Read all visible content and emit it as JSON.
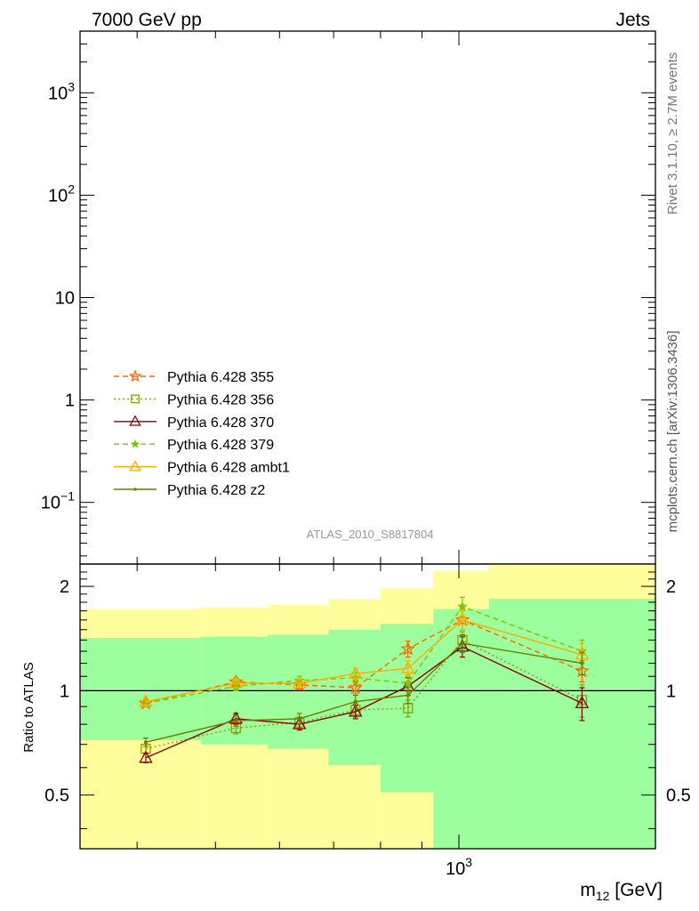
{
  "header": {
    "left": "7000 GeV pp",
    "right": "Jets"
  },
  "side": {
    "rivet_text": "Rivet 3.1.10, ≥ 2.7M events",
    "mcplots_text": "mcplots.cern.ch [arXiv:1306.3436]"
  },
  "analysis_label": "ATLAS_2010_S8817804",
  "colors": {
    "band_inner": "#9cfe9c",
    "band_outer": "#fefe9c",
    "s355": "#ff6600",
    "s356": "#8aa000",
    "s370": "#8b0000",
    "s379": "#7ac700",
    "ambt1": "#ffaa00",
    "z2": "#6b7f00"
  },
  "chart_data": [
    {
      "type": "line",
      "panel": "main",
      "title": "",
      "ylabel": "",
      "y_scale": "log",
      "ylim": [
        0.025,
        4000
      ],
      "y_ticks": [
        {
          "value": 0.1,
          "base": "10",
          "exp": "−1",
          "plain": ""
        },
        {
          "value": 1,
          "base": "",
          "exp": "",
          "plain": "1"
        },
        {
          "value": 10,
          "base": "",
          "exp": "",
          "plain": "10"
        },
        {
          "value": 100,
          "base": "10",
          "exp": "2",
          "plain": ""
        },
        {
          "value": 1000,
          "base": "10",
          "exp": "3",
          "plain": ""
        }
      ],
      "legend_position": "lower-left",
      "legend": [
        {
          "name": "Pythia 6.428 355",
          "color_key": "s355",
          "marker": "star-open",
          "dash": "6,4"
        },
        {
          "name": "Pythia 6.428 356",
          "color_key": "s356",
          "marker": "square-open",
          "dash": "2,3"
        },
        {
          "name": "Pythia 6.428 370",
          "color_key": "s370",
          "marker": "triangle-open",
          "dash": ""
        },
        {
          "name": "Pythia 6.428 379",
          "color_key": "s379",
          "marker": "star-filled",
          "dash": "6,4"
        },
        {
          "name": "Pythia 6.428 ambt1",
          "color_key": "ambt1",
          "marker": "triangle-open",
          "dash": ""
        },
        {
          "name": "Pythia 6.428 z2",
          "color_key": "z2",
          "marker": "dot",
          "dash": ""
        }
      ]
    },
    {
      "type": "line",
      "panel": "ratio",
      "xlabel_main": "m",
      "xlabel_sub": "12",
      "xlabel_unit": " [GeV]",
      "ylabel": "Ratio to ATLAS",
      "x_scale": "log",
      "xlim": [
        340,
        1750
      ],
      "ylim": [
        0.35,
        2.32
      ],
      "y_scale": "log",
      "x_ticks": [
        {
          "value": 1000,
          "base": "10",
          "exp": "3"
        }
      ],
      "y_ticks": [
        {
          "value": 0.5,
          "label": "0.5"
        },
        {
          "value": 1,
          "label": "1"
        },
        {
          "value": 2,
          "label": "2"
        }
      ],
      "reference_line": 1,
      "bands": [
        {
          "x_low": 340,
          "x_high": 480,
          "inner": [
            0.72,
            1.42
          ],
          "outer": [
            0.35,
            1.72
          ]
        },
        {
          "x_low": 480,
          "x_high": 580,
          "inner": [
            0.7,
            1.43
          ],
          "outer": [
            0.35,
            1.74
          ]
        },
        {
          "x_low": 580,
          "x_high": 690,
          "inner": [
            0.68,
            1.45
          ],
          "outer": [
            0.35,
            1.77
          ]
        },
        {
          "x_low": 690,
          "x_high": 800,
          "inner": [
            0.61,
            1.5
          ],
          "outer": [
            0.35,
            1.84
          ]
        },
        {
          "x_low": 800,
          "x_high": 930,
          "inner": [
            0.51,
            1.56
          ],
          "outer": [
            0.35,
            1.98
          ]
        },
        {
          "x_low": 930,
          "x_high": 1090,
          "inner": [
            0.35,
            1.72
          ],
          "outer": [
            0.35,
            2.22
          ]
        },
        {
          "x_low": 1090,
          "x_high": 1750,
          "inner": [
            0.35,
            1.84
          ],
          "outer": [
            0.35,
            2.32
          ]
        }
      ],
      "x": [
        410,
        530,
        635,
        745,
        865,
        1010,
        1420
      ],
      "series": [
        {
          "name": "Pythia 6.428 355",
          "color_key": "s355",
          "marker": "star-open",
          "dash": "6,4",
          "values": [
            0.92,
            1.06,
            1.04,
            1.02,
            1.32,
            1.6,
            1.14
          ],
          "err": [
            0.02,
            0.03,
            0.03,
            0.04,
            0.07,
            0.1,
            0.08
          ]
        },
        {
          "name": "Pythia 6.428 356",
          "color_key": "s356",
          "marker": "square-open",
          "dash": "2,3",
          "values": [
            0.68,
            0.78,
            0.81,
            0.88,
            0.89,
            1.4,
            0.94
          ],
          "err": [
            0.02,
            0.03,
            0.03,
            0.04,
            0.05,
            0.08,
            0.1
          ]
        },
        {
          "name": "Pythia 6.428 370",
          "color_key": "s370",
          "marker": "triangle-open",
          "dash": "",
          "values": [
            0.64,
            0.83,
            0.8,
            0.87,
            1.03,
            1.34,
            0.92
          ],
          "err": [
            0.02,
            0.03,
            0.03,
            0.04,
            0.06,
            0.09,
            0.1
          ]
        },
        {
          "name": "Pythia 6.428 379",
          "color_key": "s379",
          "marker": "star-filled",
          "dash": "6,4",
          "values": [
            0.92,
            1.03,
            1.07,
            1.09,
            1.05,
            1.75,
            1.3
          ],
          "err": [
            0.02,
            0.03,
            0.03,
            0.04,
            0.06,
            0.11,
            0.1
          ]
        },
        {
          "name": "Pythia 6.428 ambt1",
          "color_key": "ambt1",
          "marker": "triangle-open",
          "dash": "",
          "values": [
            0.93,
            1.05,
            1.05,
            1.12,
            1.16,
            1.6,
            1.27
          ],
          "err": [
            0.02,
            0.03,
            0.03,
            0.04,
            0.06,
            0.1,
            0.1
          ]
        },
        {
          "name": "Pythia 6.428 z2",
          "color_key": "z2",
          "marker": "dot",
          "dash": "",
          "values": [
            0.71,
            0.82,
            0.83,
            0.93,
            0.97,
            1.37,
            1.2
          ],
          "err": [
            0.02,
            0.03,
            0.03,
            0.04,
            0.05,
            0.08,
            0.09
          ]
        }
      ]
    }
  ]
}
